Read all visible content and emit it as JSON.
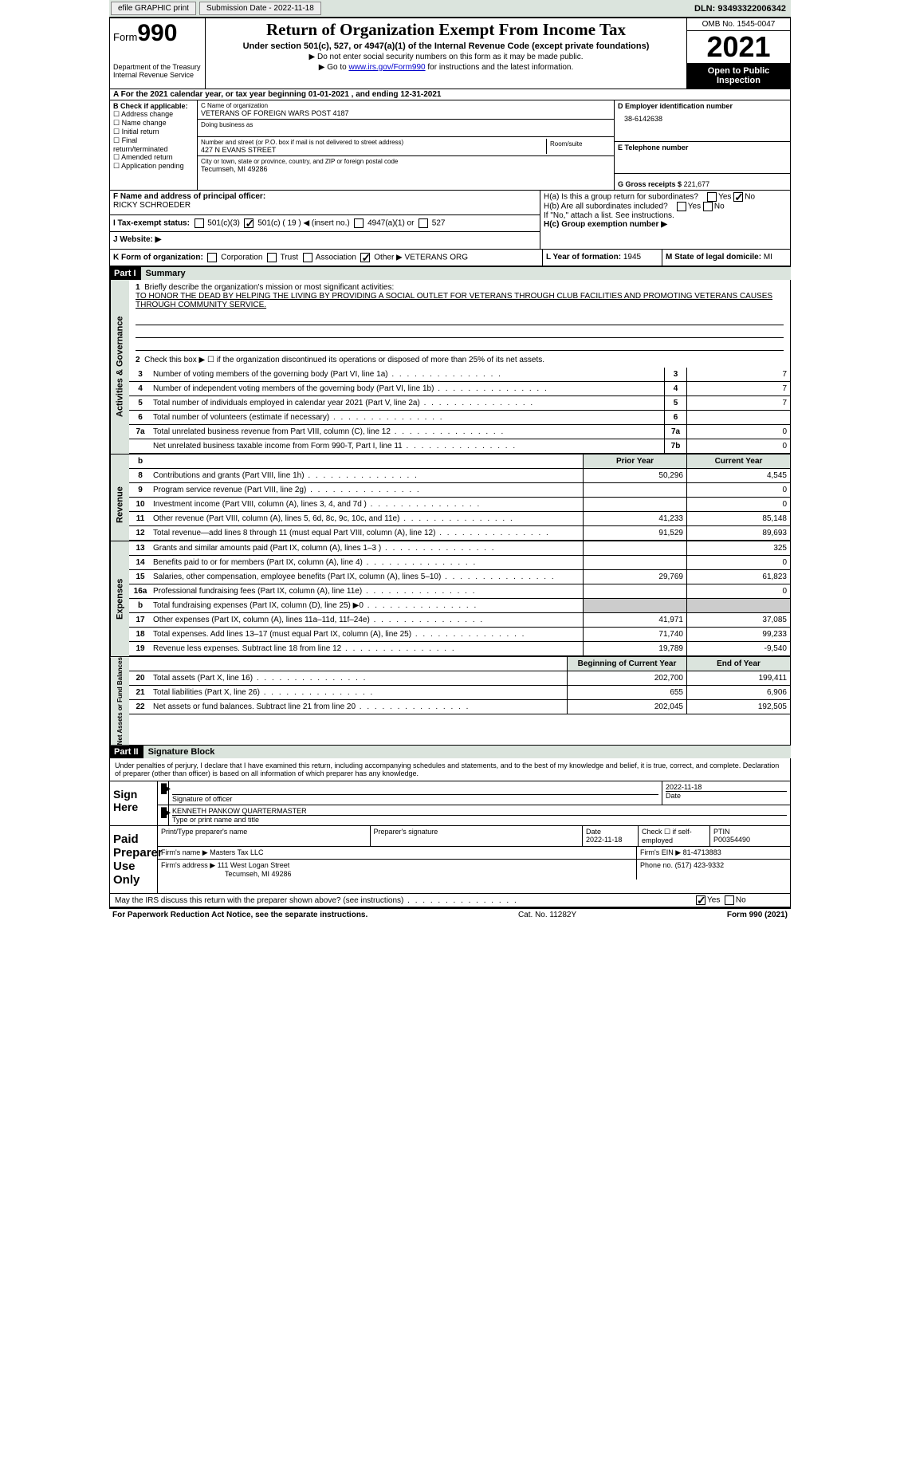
{
  "topbar": {
    "efile": "efile GRAPHIC print",
    "subdate_lbl": "Submission Date - 2022-11-18",
    "dln": "DLN: 93493322006342"
  },
  "header": {
    "form_word": "Form",
    "form_num": "990",
    "dept": "Department of the Treasury\nInternal Revenue Service",
    "title": "Return of Organization Exempt From Income Tax",
    "sub": "Under section 501(c), 527, or 4947(a)(1) of the Internal Revenue Code (except private foundations)",
    "note1": "▶ Do not enter social security numbers on this form as it may be made public.",
    "note2_pre": "▶ Go to ",
    "note2_link": "www.irs.gov/Form990",
    "note2_post": " for instructions and the latest information.",
    "omb": "OMB No. 1545-0047",
    "year": "2021",
    "open": "Open to Public Inspection"
  },
  "row_a": "A For the 2021 calendar year, or tax year beginning 01-01-2021   , and ending 12-31-2021",
  "col_b": {
    "hdr": "B Check if applicable:",
    "items": [
      "Address change",
      "Name change",
      "Initial return",
      "Final return/terminated",
      "Amended return",
      "Application pending"
    ]
  },
  "col_c": {
    "name_lbl": "C Name of organization",
    "name": "VETERANS OF FOREIGN WARS POST 4187",
    "dba_lbl": "Doing business as",
    "dba": "",
    "street_lbl": "Number and street (or P.O. box if mail is not delivered to street address)",
    "room_lbl": "Room/suite",
    "street": "427 N EVANS STREET",
    "city_lbl": "City or town, state or province, country, and ZIP or foreign postal code",
    "city": "Tecumseh, MI  49286"
  },
  "col_d": {
    "ein_lbl": "D Employer identification number",
    "ein": "38-6142638",
    "tel_lbl": "E Telephone number",
    "tel": "",
    "gross_lbl": "G Gross receipts $",
    "gross": "221,677"
  },
  "row_f": {
    "f_lbl": "F  Name and address of principal officer:",
    "f_name": "RICKY SCHROEDER",
    "ha_lbl": "H(a)  Is this a group return for subordinates?",
    "ha_yes": "Yes",
    "ha_no": "No",
    "hb_lbl": "H(b)  Are all subordinates included?",
    "hb_note": "If \"No,\" attach a list. See instructions.",
    "hc_lbl": "H(c)  Group exemption number ▶",
    "i_lbl": "I  Tax-exempt status:",
    "i_501c3": "501(c)(3)",
    "i_501c": "501(c) ( 19 ) ◀ (insert no.)",
    "i_4947": "4947(a)(1) or",
    "i_527": "527",
    "j_lbl": "J  Website: ▶"
  },
  "row_k": {
    "k_lbl": "K Form of organization:",
    "k_corp": "Corporation",
    "k_trust": "Trust",
    "k_assoc": "Association",
    "k_other": "Other ▶",
    "k_other_val": "VETERANS ORG",
    "l_lbl": "L Year of formation:",
    "l_val": "1945",
    "m_lbl": "M State of legal domicile:",
    "m_val": "MI"
  },
  "part1": {
    "hdr": "Part I",
    "title": "Summary",
    "l1_lbl": "Briefly describe the organization's mission or most significant activities:",
    "l1_txt": "TO HONOR THE DEAD BY HELPING THE LIVING BY PROVIDING A SOCIAL OUTLET FOR VETERANS THROUGH CLUB FACILITIES AND PROMOTING VETERANS CAUSES THROUGH COMMUNITY SERVICE.",
    "l2": "Check this box ▶ ☐  if the organization discontinued its operations or disposed of more than 25% of its net assets.",
    "rows_single": [
      {
        "n": "3",
        "txt": "Number of voting members of the governing body (Part VI, line 1a)",
        "box": "3",
        "val": "7"
      },
      {
        "n": "4",
        "txt": "Number of independent voting members of the governing body (Part VI, line 1b)",
        "box": "4",
        "val": "7"
      },
      {
        "n": "5",
        "txt": "Total number of individuals employed in calendar year 2021 (Part V, line 2a)",
        "box": "5",
        "val": "7"
      },
      {
        "n": "6",
        "txt": "Total number of volunteers (estimate if necessary)",
        "box": "6",
        "val": ""
      },
      {
        "n": "7a",
        "txt": "Total unrelated business revenue from Part VIII, column (C), line 12",
        "box": "7a",
        "val": "0"
      },
      {
        "n": "",
        "txt": "Net unrelated business taxable income from Form 990-T, Part I, line 11",
        "box": "7b",
        "val": "0"
      }
    ],
    "col_hdr_prior": "Prior Year",
    "col_hdr_curr": "Current Year",
    "revenue": [
      {
        "n": "8",
        "txt": "Contributions and grants (Part VIII, line 1h)",
        "p": "50,296",
        "c": "4,545"
      },
      {
        "n": "9",
        "txt": "Program service revenue (Part VIII, line 2g)",
        "p": "",
        "c": "0"
      },
      {
        "n": "10",
        "txt": "Investment income (Part VIII, column (A), lines 3, 4, and 7d )",
        "p": "",
        "c": "0"
      },
      {
        "n": "11",
        "txt": "Other revenue (Part VIII, column (A), lines 5, 6d, 8c, 9c, 10c, and 11e)",
        "p": "41,233",
        "c": "85,148"
      },
      {
        "n": "12",
        "txt": "Total revenue—add lines 8 through 11 (must equal Part VIII, column (A), line 12)",
        "p": "91,529",
        "c": "89,693"
      }
    ],
    "expenses": [
      {
        "n": "13",
        "txt": "Grants and similar amounts paid (Part IX, column (A), lines 1–3 )",
        "p": "",
        "c": "325"
      },
      {
        "n": "14",
        "txt": "Benefits paid to or for members (Part IX, column (A), line 4)",
        "p": "",
        "c": "0"
      },
      {
        "n": "15",
        "txt": "Salaries, other compensation, employee benefits (Part IX, column (A), lines 5–10)",
        "p": "29,769",
        "c": "61,823"
      },
      {
        "n": "16a",
        "txt": "Professional fundraising fees (Part IX, column (A), line 11e)",
        "p": "",
        "c": "0"
      },
      {
        "n": "b",
        "txt": "Total fundraising expenses (Part IX, column (D), line 25) ▶0",
        "p": "GRAY",
        "c": "GRAY"
      },
      {
        "n": "17",
        "txt": "Other expenses (Part IX, column (A), lines 11a–11d, 11f–24e)",
        "p": "41,971",
        "c": "37,085"
      },
      {
        "n": "18",
        "txt": "Total expenses. Add lines 13–17 (must equal Part IX, column (A), line 25)",
        "p": "71,740",
        "c": "99,233"
      },
      {
        "n": "19",
        "txt": "Revenue less expenses. Subtract line 18 from line 12",
        "p": "19,789",
        "c": "-9,540"
      }
    ],
    "col_hdr_beg": "Beginning of Current Year",
    "col_hdr_end": "End of Year",
    "netassets": [
      {
        "n": "20",
        "txt": "Total assets (Part X, line 16)",
        "p": "202,700",
        "c": "199,411"
      },
      {
        "n": "21",
        "txt": "Total liabilities (Part X, line 26)",
        "p": "655",
        "c": "6,906"
      },
      {
        "n": "22",
        "txt": "Net assets or fund balances. Subtract line 21 from line 20",
        "p": "202,045",
        "c": "192,505"
      }
    ]
  },
  "part2": {
    "hdr": "Part II",
    "title": "Signature Block",
    "decl": "Under penalties of perjury, I declare that I have examined this return, including accompanying schedules and statements, and to the best of my knowledge and belief, it is true, correct, and complete. Declaration of preparer (other than officer) is based on all information of which preparer has any knowledge.",
    "sign_here": "Sign Here",
    "sig_off_lbl": "Signature of officer",
    "sig_date": "2022-11-18",
    "date_lbl": "Date",
    "sig_name": "KENNETH PANKOW QUARTERMASTER",
    "sig_name_lbl": "Type or print name and title",
    "paid": "Paid Preparer Use Only",
    "prep_name_lbl": "Print/Type preparer's name",
    "prep_sig_lbl": "Preparer's signature",
    "prep_date_lbl": "Date",
    "prep_date": "2022-11-18",
    "chk_self_lbl": "Check ☐ if self-employed",
    "ptin_lbl": "PTIN",
    "ptin": "P00354490",
    "firm_name_lbl": "Firm's name    ▶",
    "firm_name": "Masters Tax LLC",
    "firm_ein_lbl": "Firm's EIN ▶",
    "firm_ein": "81-4713883",
    "firm_addr_lbl": "Firm's address ▶",
    "firm_addr": "111 West Logan Street",
    "firm_city": "Tecumseh, MI  49286",
    "phone_lbl": "Phone no.",
    "phone": "(517) 423-9332",
    "discuss": "May the IRS discuss this return with the preparer shown above? (see instructions)",
    "d_yes": "Yes",
    "d_no": "No"
  },
  "footer": {
    "l": "For Paperwork Reduction Act Notice, see the separate instructions.",
    "m": "Cat. No. 11282Y",
    "r": "Form 990 (2021)"
  }
}
